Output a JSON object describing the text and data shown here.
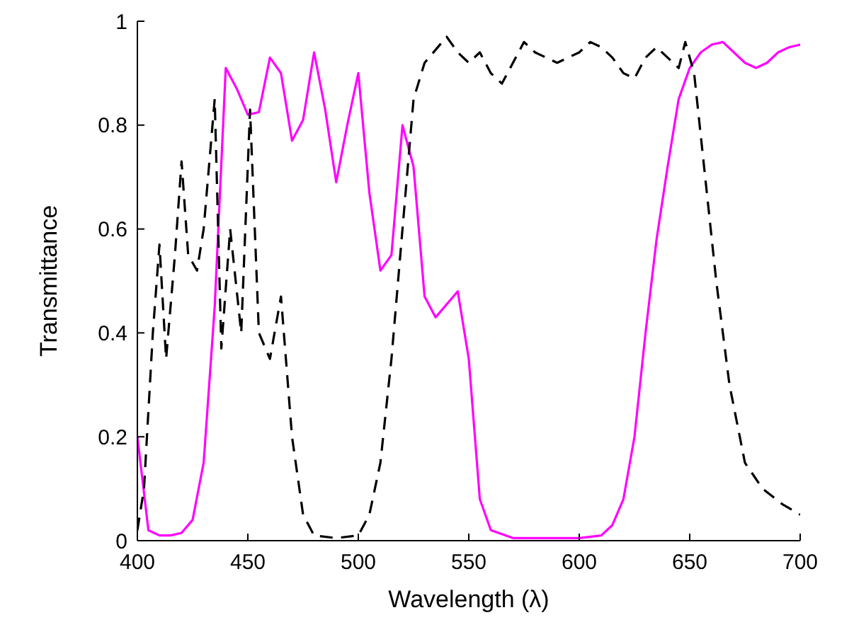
{
  "chart_data": {
    "type": "line",
    "xlabel": "Wavelength (λ)",
    "ylabel": "Transmittance",
    "xlim": [
      400,
      700
    ],
    "ylim": [
      0,
      1
    ],
    "xticks": [
      400,
      450,
      500,
      550,
      600,
      650,
      700
    ],
    "yticks": [
      0,
      0.2,
      0.4,
      0.6,
      0.8,
      1
    ],
    "grid": false,
    "series": [
      {
        "color": "#ff00ff",
        "line_style": "solid",
        "x": [
          400,
          405,
          410,
          415,
          420,
          425,
          430,
          435,
          440,
          445,
          450,
          455,
          460,
          465,
          470,
          475,
          480,
          485,
          490,
          495,
          500,
          505,
          510,
          515,
          520,
          525,
          530,
          535,
          545,
          550,
          555,
          560,
          570,
          600,
          610,
          615,
          620,
          625,
          630,
          635,
          640,
          645,
          650,
          655,
          660,
          665,
          670,
          675,
          680,
          685,
          690,
          695,
          700
        ],
        "values": [
          0.2,
          0.02,
          0.01,
          0.01,
          0.015,
          0.04,
          0.15,
          0.45,
          0.91,
          0.87,
          0.82,
          0.825,
          0.93,
          0.9,
          0.77,
          0.81,
          0.94,
          0.83,
          0.69,
          0.8,
          0.9,
          0.67,
          0.52,
          0.55,
          0.8,
          0.72,
          0.47,
          0.43,
          0.48,
          0.35,
          0.08,
          0.02,
          0.005,
          0.005,
          0.01,
          0.03,
          0.08,
          0.2,
          0.4,
          0.58,
          0.72,
          0.85,
          0.91,
          0.94,
          0.955,
          0.96,
          0.94,
          0.92,
          0.91,
          0.92,
          0.94,
          0.95,
          0.955
        ]
      },
      {
        "color": "#000000",
        "line_style": "dashed",
        "x": [
          400,
          403,
          407,
          410,
          413,
          417,
          420,
          423,
          427,
          430,
          435,
          438,
          442,
          447,
          451,
          455,
          460,
          465,
          470,
          475,
          480,
          490,
          500,
          505,
          510,
          515,
          520,
          525,
          530,
          540,
          545,
          550,
          555,
          560,
          565,
          570,
          575,
          580,
          585,
          590,
          600,
          605,
          610,
          615,
          620,
          625,
          630,
          635,
          640,
          645,
          648,
          652,
          657,
          662,
          668,
          675,
          683,
          692,
          700
        ],
        "values": [
          0.02,
          0.1,
          0.4,
          0.57,
          0.35,
          0.55,
          0.73,
          0.55,
          0.52,
          0.6,
          0.85,
          0.37,
          0.6,
          0.4,
          0.83,
          0.4,
          0.35,
          0.47,
          0.2,
          0.05,
          0.01,
          0.005,
          0.01,
          0.05,
          0.15,
          0.35,
          0.6,
          0.85,
          0.92,
          0.97,
          0.94,
          0.92,
          0.94,
          0.9,
          0.88,
          0.92,
          0.96,
          0.94,
          0.93,
          0.92,
          0.94,
          0.96,
          0.95,
          0.93,
          0.9,
          0.89,
          0.93,
          0.95,
          0.93,
          0.91,
          0.96,
          0.9,
          0.7,
          0.5,
          0.3,
          0.15,
          0.1,
          0.07,
          0.05
        ]
      }
    ]
  }
}
